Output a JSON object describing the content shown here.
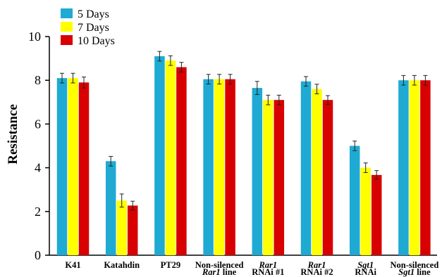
{
  "chart_data": {
    "type": "bar",
    "ylabel": "Resistance",
    "xlabel": "",
    "ylim": [
      0,
      10
    ],
    "yticks": [
      "0",
      "2",
      "4",
      "6",
      "8",
      "10"
    ],
    "grid": false,
    "legend_position": "top-left",
    "categories": [
      {
        "line1": [
          {
            "t": "K41",
            "i": false
          }
        ],
        "line2": []
      },
      {
        "line1": [
          {
            "t": "Katahdin",
            "i": false
          }
        ],
        "line2": []
      },
      {
        "line1": [
          {
            "t": "PT29",
            "i": false
          }
        ],
        "line2": []
      },
      {
        "line1": [
          {
            "t": "Non-silenced",
            "i": false
          }
        ],
        "line2": [
          {
            "t": "Rar1",
            "i": true
          },
          {
            "t": " line",
            "i": false
          }
        ]
      },
      {
        "line1": [
          {
            "t": "Rar1",
            "i": true
          }
        ],
        "line2": [
          {
            "t": "RNAi #1",
            "i": false
          }
        ]
      },
      {
        "line1": [
          {
            "t": "Rar1",
            "i": true
          }
        ],
        "line2": [
          {
            "t": "RNAi #2",
            "i": false
          }
        ]
      },
      {
        "line1": [
          {
            "t": "Sgt1",
            "i": true
          }
        ],
        "line2": [
          {
            "t": "RNAi",
            "i": false
          }
        ]
      },
      {
        "line1": [
          {
            "t": "Non-silenced",
            "i": false
          }
        ],
        "line2": [
          {
            "t": "Sgt1",
            "i": true
          },
          {
            "t": " line",
            "i": false
          }
        ]
      }
    ],
    "series": [
      {
        "name": "5 Days",
        "color": "#1eaad2",
        "values": [
          8.1,
          4.3,
          9.1,
          8.05,
          7.65,
          7.95,
          5.0,
          8.0
        ],
        "errors": [
          0.22,
          0.22,
          0.22,
          0.22,
          0.3,
          0.22,
          0.22,
          0.22
        ]
      },
      {
        "name": "7 Days",
        "color": "#ffff00",
        "values": [
          8.1,
          2.5,
          8.9,
          8.05,
          7.1,
          7.6,
          4.0,
          8.0
        ],
        "errors": [
          0.22,
          0.3,
          0.22,
          0.22,
          0.22,
          0.22,
          0.22,
          0.22
        ]
      },
      {
        "name": "10 Days",
        "color": "#d80000",
        "values": [
          7.9,
          2.27,
          8.6,
          8.05,
          7.1,
          7.1,
          3.67,
          8.0
        ],
        "errors": [
          0.25,
          0.2,
          0.22,
          0.22,
          0.22,
          0.2,
          0.2,
          0.22
        ]
      }
    ]
  }
}
